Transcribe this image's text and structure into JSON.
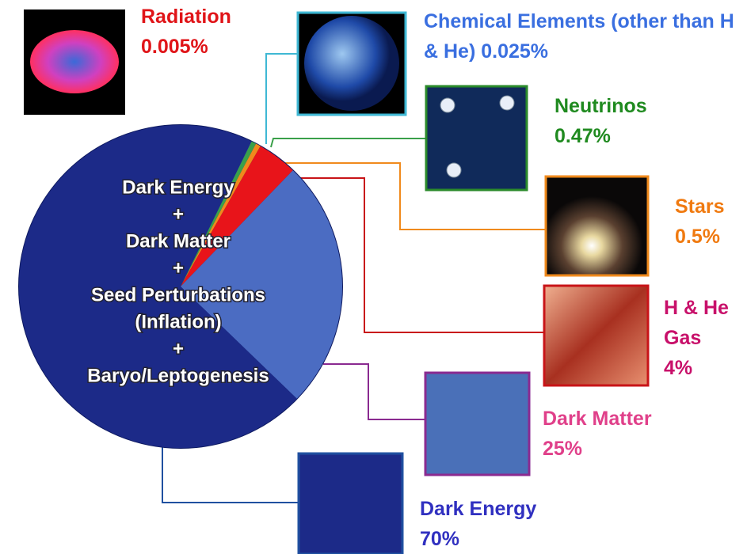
{
  "chart_data": {
    "type": "pie",
    "categories": [
      "Radiation",
      "Chemical Elements (other than H & He)",
      "Neutrinos",
      "Stars",
      "H & He Gas",
      "Dark Matter",
      "Dark Energy"
    ],
    "values": [
      0.005,
      0.025,
      0.47,
      0.5,
      4,
      25,
      70
    ],
    "value_labels": [
      "0.005%",
      "0.025%",
      "0.47%",
      "0.5%",
      "4%",
      "25%",
      "70%"
    ],
    "colors": [
      "#ff2020",
      "#3fb8d4",
      "#3aa04a",
      "#f08a1c",
      "#e8141a",
      "#4b6cc2",
      "#1c2a88"
    ],
    "label_colors": [
      "#e01418",
      "#3a6fe0",
      "#1f8a1f",
      "#f07a10",
      "#c8106a",
      "#e0408a",
      "#3030c0"
    ],
    "center_text": [
      "Dark Energy",
      "+",
      "Dark Matter",
      "+",
      "Seed Perturbations",
      "(Inflation)",
      "+",
      "Baryo/Leptogenesis"
    ]
  }
}
